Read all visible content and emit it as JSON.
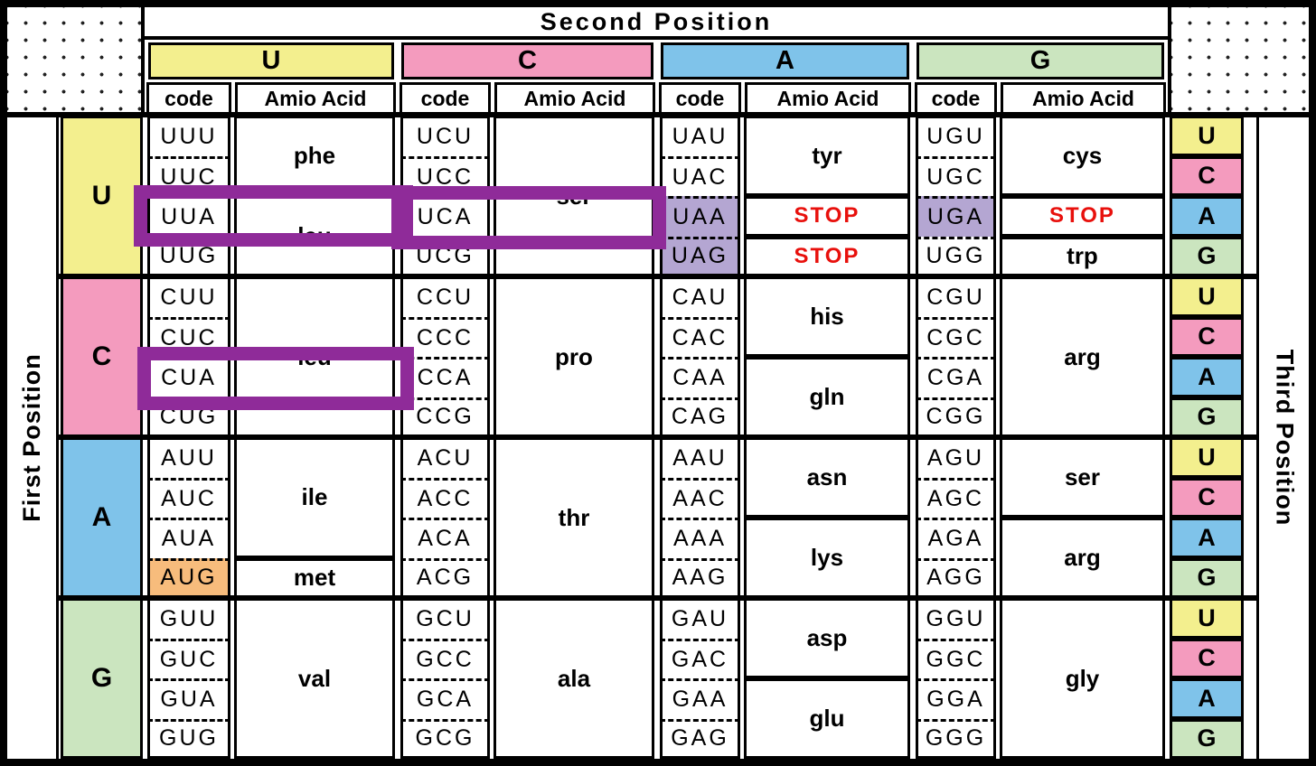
{
  "header": {
    "title": "Second Position",
    "second_letters": [
      "U",
      "C",
      "A",
      "G"
    ],
    "subheaders": [
      "code",
      "Amio Acid"
    ]
  },
  "axes": {
    "left": "First Position",
    "right": "Third Position"
  },
  "third_letters": [
    "U",
    "C",
    "A",
    "G"
  ],
  "letter_colors": {
    "U": "#F3EF8E",
    "C": "#F49BBE",
    "A": "#7FC3EA",
    "G": "#CBE5BF"
  },
  "special_colors": {
    "stop_codon_bg": "#B4A6D2",
    "start_codon_bg": "#F7BC7C",
    "stop_text": "#E8100C",
    "highlight_border": "#8F2B99"
  },
  "highlights": {
    "highlighted_codons": [
      "UUA",
      "UCA",
      "CUA"
    ]
  },
  "groups": [
    {
      "first_letter": "U",
      "cols": [
        {
          "second": "U",
          "codes": [
            {
              "t": "UUU"
            },
            {
              "t": "UUC"
            },
            {
              "t": "UUA"
            },
            {
              "t": "UUG"
            }
          ],
          "aminos": [
            {
              "t": "phe",
              "span": 2
            },
            {
              "t": "leu",
              "span": 2
            }
          ]
        },
        {
          "second": "C",
          "codes": [
            {
              "t": "UCU"
            },
            {
              "t": "UCC"
            },
            {
              "t": "UCA"
            },
            {
              "t": "UCG"
            }
          ],
          "aminos": [
            {
              "t": "ser",
              "span": 4
            }
          ]
        },
        {
          "second": "A",
          "codes": [
            {
              "t": "UAU"
            },
            {
              "t": "UAC"
            },
            {
              "t": "UAA",
              "stop": true
            },
            {
              "t": "UAG",
              "stop": true
            }
          ],
          "aminos": [
            {
              "t": "tyr",
              "span": 2
            },
            {
              "t": "STOP",
              "span": 1,
              "stop": true
            },
            {
              "t": "STOP",
              "span": 1,
              "stop": true
            }
          ]
        },
        {
          "second": "G",
          "codes": [
            {
              "t": "UGU"
            },
            {
              "t": "UGC"
            },
            {
              "t": "UGA",
              "stop": true
            },
            {
              "t": "UGG"
            }
          ],
          "aminos": [
            {
              "t": "cys",
              "span": 2
            },
            {
              "t": "STOP",
              "span": 1,
              "stop": true
            },
            {
              "t": "trp",
              "span": 1
            }
          ]
        }
      ]
    },
    {
      "first_letter": "C",
      "cols": [
        {
          "second": "U",
          "codes": [
            {
              "t": "CUU"
            },
            {
              "t": "CUC"
            },
            {
              "t": "CUA"
            },
            {
              "t": "CUG"
            }
          ],
          "aminos": [
            {
              "t": "leu",
              "span": 4
            }
          ]
        },
        {
          "second": "C",
          "codes": [
            {
              "t": "CCU"
            },
            {
              "t": "CCC"
            },
            {
              "t": "CCA"
            },
            {
              "t": "CCG"
            }
          ],
          "aminos": [
            {
              "t": "pro",
              "span": 4
            }
          ]
        },
        {
          "second": "A",
          "codes": [
            {
              "t": "CAU"
            },
            {
              "t": "CAC"
            },
            {
              "t": "CAA"
            },
            {
              "t": "CAG"
            }
          ],
          "aminos": [
            {
              "t": "his",
              "span": 2
            },
            {
              "t": "gln",
              "span": 2
            }
          ]
        },
        {
          "second": "G",
          "codes": [
            {
              "t": "CGU"
            },
            {
              "t": "CGC"
            },
            {
              "t": "CGA"
            },
            {
              "t": "CGG"
            }
          ],
          "aminos": [
            {
              "t": "arg",
              "span": 4
            }
          ]
        }
      ]
    },
    {
      "first_letter": "A",
      "cols": [
        {
          "second": "U",
          "codes": [
            {
              "t": "AUU"
            },
            {
              "t": "AUC"
            },
            {
              "t": "AUA"
            },
            {
              "t": "AUG",
              "start": true
            }
          ],
          "aminos": [
            {
              "t": "ile",
              "span": 3
            },
            {
              "t": "met",
              "span": 1
            }
          ]
        },
        {
          "second": "C",
          "codes": [
            {
              "t": "ACU"
            },
            {
              "t": "ACC"
            },
            {
              "t": "ACA"
            },
            {
              "t": "ACG"
            }
          ],
          "aminos": [
            {
              "t": "thr",
              "span": 4
            }
          ]
        },
        {
          "second": "A",
          "codes": [
            {
              "t": "AAU"
            },
            {
              "t": "AAC"
            },
            {
              "t": "AAA"
            },
            {
              "t": "AAG"
            }
          ],
          "aminos": [
            {
              "t": "asn",
              "span": 2
            },
            {
              "t": "lys",
              "span": 2
            }
          ]
        },
        {
          "second": "G",
          "codes": [
            {
              "t": "AGU"
            },
            {
              "t": "AGC"
            },
            {
              "t": "AGA"
            },
            {
              "t": "AGG"
            }
          ],
          "aminos": [
            {
              "t": "ser",
              "span": 2
            },
            {
              "t": "arg",
              "span": 2
            }
          ]
        }
      ]
    },
    {
      "first_letter": "G",
      "cols": [
        {
          "second": "U",
          "codes": [
            {
              "t": "GUU"
            },
            {
              "t": "GUC"
            },
            {
              "t": "GUA"
            },
            {
              "t": "GUG"
            }
          ],
          "aminos": [
            {
              "t": "val",
              "span": 4
            }
          ]
        },
        {
          "second": "C",
          "codes": [
            {
              "t": "GCU"
            },
            {
              "t": "GCC"
            },
            {
              "t": "GCA"
            },
            {
              "t": "GCG"
            }
          ],
          "aminos": [
            {
              "t": "ala",
              "span": 4
            }
          ]
        },
        {
          "second": "A",
          "codes": [
            {
              "t": "GAU"
            },
            {
              "t": "GAC"
            },
            {
              "t": "GAA"
            },
            {
              "t": "GAG"
            }
          ],
          "aminos": [
            {
              "t": "asp",
              "span": 2
            },
            {
              "t": "glu",
              "span": 2
            }
          ]
        },
        {
          "second": "G",
          "codes": [
            {
              "t": "GGU"
            },
            {
              "t": "GGC"
            },
            {
              "t": "GGA"
            },
            {
              "t": "GGG"
            }
          ],
          "aminos": [
            {
              "t": "gly",
              "span": 4
            }
          ]
        }
      ]
    }
  ]
}
